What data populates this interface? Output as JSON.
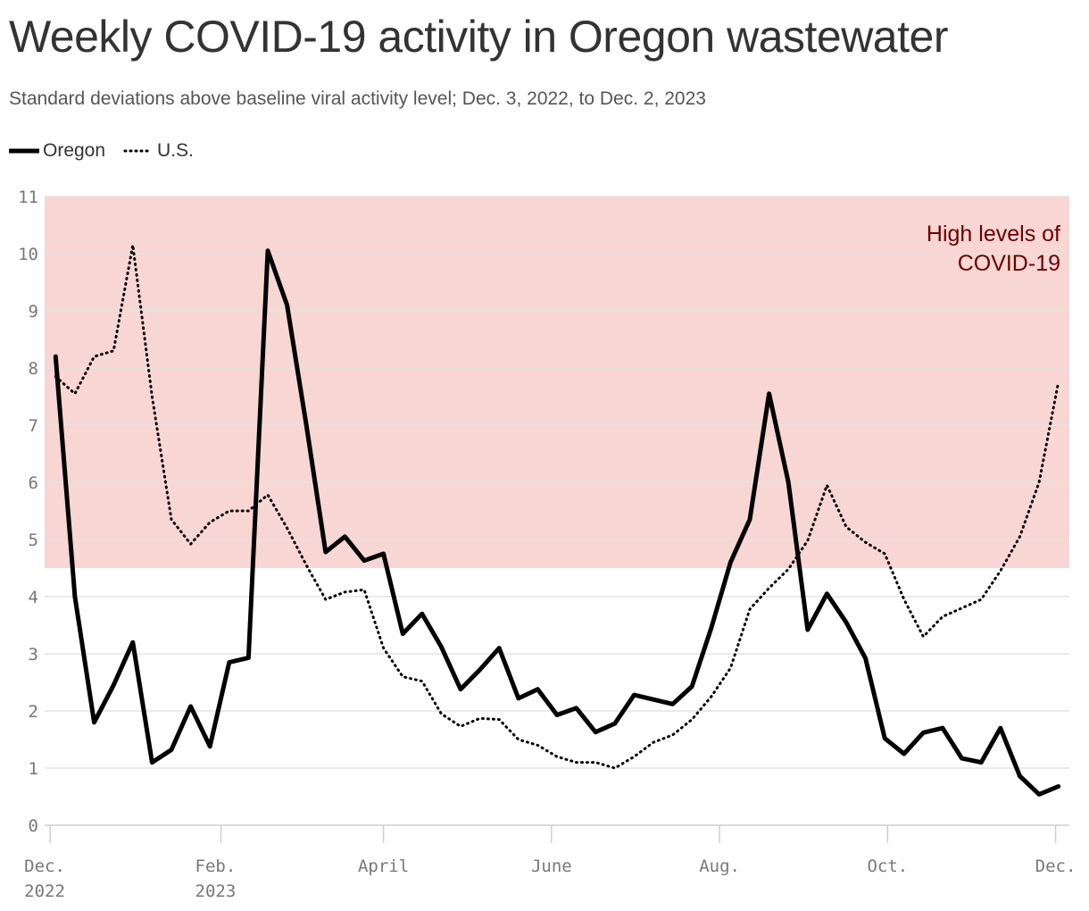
{
  "chart_data": {
    "type": "line",
    "title": "Weekly COVID-19 activity in Oregon wastewater",
    "subtitle": "Standard deviations above baseline viral activity level; Dec. 3, 2022, to Dec. 2, 2023",
    "ylim": [
      0,
      11
    ],
    "yticks": [
      0,
      1,
      2,
      3,
      4,
      5,
      6,
      7,
      8,
      9,
      10,
      11
    ],
    "xlim": [
      "2022-11-29",
      "2023-12-06"
    ],
    "xticks": [
      {
        "date": "2022-12-01",
        "line1": "Dec.",
        "line2": "2022"
      },
      {
        "date": "2023-02-01",
        "line1": "Feb.",
        "line2": "2023"
      },
      {
        "date": "2023-04-01",
        "line1": "April",
        "line2": ""
      },
      {
        "date": "2023-06-01",
        "line1": "June",
        "line2": ""
      },
      {
        "date": "2023-08-01",
        "line1": "Aug.",
        "line2": ""
      },
      {
        "date": "2023-10-01",
        "line1": "Oct.",
        "line2": ""
      },
      {
        "date": "2023-12-01",
        "line1": "Dec.",
        "line2": ""
      }
    ],
    "grid": true,
    "legend_position": "top-left",
    "band": {
      "from": 4.5,
      "to": 11,
      "label_line1": "High levels of",
      "label_line2": "COVID-19",
      "color": "#f7d6d3"
    },
    "x": [
      "2022-12-03",
      "2022-12-10",
      "2022-12-17",
      "2022-12-24",
      "2022-12-31",
      "2023-01-07",
      "2023-01-14",
      "2023-01-21",
      "2023-01-28",
      "2023-02-04",
      "2023-02-11",
      "2023-02-18",
      "2023-02-25",
      "2023-03-04",
      "2023-03-11",
      "2023-03-18",
      "2023-03-25",
      "2023-04-01",
      "2023-04-08",
      "2023-04-15",
      "2023-04-22",
      "2023-04-29",
      "2023-05-06",
      "2023-05-13",
      "2023-05-20",
      "2023-05-27",
      "2023-06-03",
      "2023-06-10",
      "2023-06-17",
      "2023-06-24",
      "2023-07-01",
      "2023-07-08",
      "2023-07-15",
      "2023-07-22",
      "2023-07-29",
      "2023-08-05",
      "2023-08-12",
      "2023-08-19",
      "2023-08-26",
      "2023-09-02",
      "2023-09-09",
      "2023-09-16",
      "2023-09-23",
      "2023-09-30",
      "2023-10-07",
      "2023-10-14",
      "2023-10-21",
      "2023-10-28",
      "2023-11-04",
      "2023-11-11",
      "2023-11-18",
      "2023-11-25",
      "2023-12-02"
    ],
    "series": [
      {
        "name": "Oregon",
        "style": "solid",
        "color": "#000000",
        "values": [
          8.2,
          4.0,
          1.8,
          2.45,
          3.2,
          1.1,
          1.32,
          2.08,
          1.38,
          2.85,
          2.93,
          10.05,
          9.1,
          7.0,
          4.78,
          5.05,
          4.63,
          4.75,
          3.35,
          3.7,
          3.12,
          2.38,
          2.72,
          3.1,
          2.22,
          2.38,
          1.93,
          2.05,
          1.63,
          1.78,
          2.28,
          2.2,
          2.12,
          2.43,
          3.45,
          4.6,
          5.35,
          7.55,
          6.0,
          3.42,
          4.05,
          3.55,
          2.92,
          1.52,
          1.25,
          1.62,
          1.7,
          1.17,
          1.1,
          1.7,
          0.86,
          0.54,
          0.68
        ]
      },
      {
        "name": "U.S.",
        "style": "dotted",
        "color": "#000000",
        "values": [
          7.85,
          7.55,
          8.2,
          8.3,
          10.15,
          7.5,
          5.35,
          4.92,
          5.3,
          5.5,
          5.5,
          5.78,
          5.2,
          4.55,
          3.95,
          4.08,
          4.12,
          3.1,
          2.6,
          2.52,
          1.95,
          1.73,
          1.87,
          1.85,
          1.5,
          1.4,
          1.2,
          1.1,
          1.1,
          1.0,
          1.2,
          1.45,
          1.58,
          1.85,
          2.25,
          2.75,
          3.78,
          4.15,
          4.48,
          4.98,
          5.95,
          5.22,
          4.95,
          4.75,
          3.95,
          3.3,
          3.65,
          3.8,
          3.95,
          4.45,
          5.05,
          6.0,
          7.75
        ]
      }
    ]
  }
}
